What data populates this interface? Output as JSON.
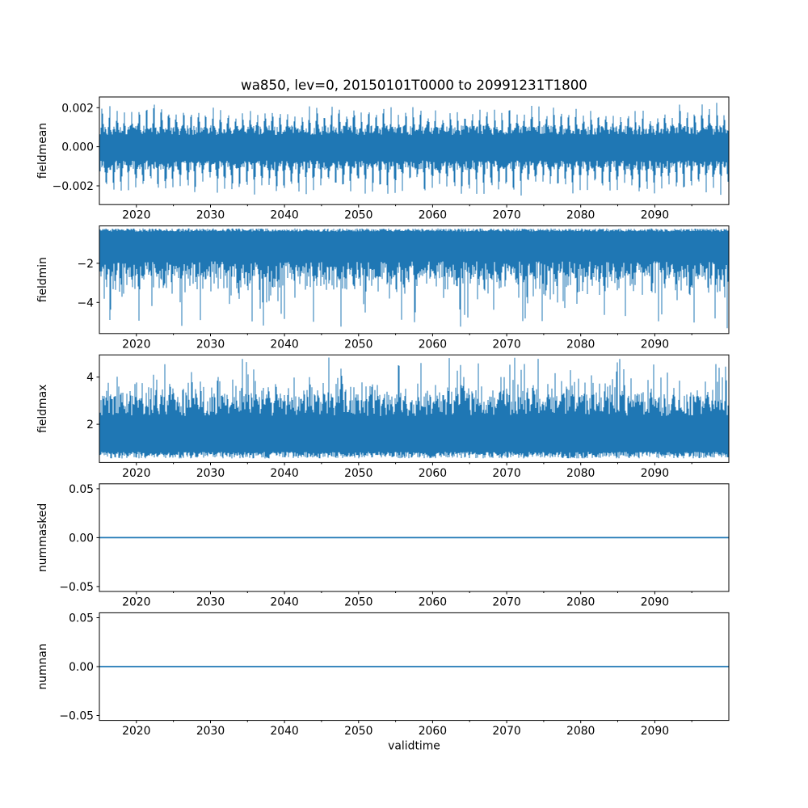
{
  "figure": {
    "title": "wa850, lev=0, 20150101T0000 to 20991231T1800",
    "xlabel": "validtime",
    "background_color": "#ffffff",
    "line_color": "#1f77b4",
    "axis_color": "#000000"
  },
  "chart_data": {
    "type": "line",
    "title": "wa850, lev=0, 20150101T0000 to 20991231T1800",
    "xlabel": "validtime",
    "legend": "none",
    "grid": false,
    "x_range_years": [
      2015,
      2100
    ],
    "x_major_ticks": [
      {
        "value": 2020,
        "label": "2020"
      },
      {
        "value": 2030,
        "label": "2030"
      },
      {
        "value": 2040,
        "label": "2040"
      },
      {
        "value": 2050,
        "label": "2050"
      },
      {
        "value": 2060,
        "label": "2060"
      },
      {
        "value": 2070,
        "label": "2070"
      },
      {
        "value": 2080,
        "label": "2080"
      },
      {
        "value": 2090,
        "label": "2090"
      }
    ],
    "x_minor_ticks": [
      2025,
      2035,
      2045,
      2055,
      2065,
      2075,
      2085,
      2095
    ],
    "subplots": [
      {
        "id": "fieldmean",
        "ylabel": "fieldmean",
        "ylim": [
          -0.00296,
          0.00255
        ],
        "yticks": [
          {
            "value": 0.002,
            "label": "0.002"
          },
          {
            "value": 0.0,
            "label": "0.000"
          },
          {
            "value": -0.002,
            "label": "−0.002"
          }
        ],
        "series": {
          "type": "noisy-band",
          "center": 0,
          "core_amplitude": 0.0012,
          "spike_max": 0.0024,
          "spike_min": -0.0027,
          "cycle": "annual"
        }
      },
      {
        "id": "fieldmin",
        "ylabel": "fieldmin",
        "ylim": [
          -5.59,
          -0.09
        ],
        "yticks": [
          {
            "value": -2,
            "label": "−2"
          },
          {
            "value": -4,
            "label": "−4"
          }
        ],
        "series": {
          "type": "noisy-band",
          "band_top": -0.25,
          "band_bottom": -2.85,
          "spike_min": -5.3,
          "cycle": "annual"
        }
      },
      {
        "id": "fieldmax",
        "ylabel": "fieldmax",
        "ylim": [
          0.38,
          4.94
        ],
        "yticks": [
          {
            "value": 4,
            "label": "4"
          },
          {
            "value": 2,
            "label": "2"
          }
        ],
        "series": {
          "type": "noisy-band",
          "band_top": 3.3,
          "band_bottom": 0.6,
          "spike_max": 4.88,
          "cycle": "annual"
        }
      },
      {
        "id": "nummasked",
        "ylabel": "nummasked",
        "ylim": [
          -0.055,
          0.055
        ],
        "yticks": [
          {
            "value": 0.05,
            "label": "0.05"
          },
          {
            "value": 0.0,
            "label": "0.00"
          },
          {
            "value": -0.05,
            "label": "−0.05"
          }
        ],
        "series": {
          "type": "constant",
          "value": 0
        }
      },
      {
        "id": "numnan",
        "ylabel": "numnan",
        "ylim": [
          -0.055,
          0.055
        ],
        "yticks": [
          {
            "value": 0.05,
            "label": "0.05"
          },
          {
            "value": 0.0,
            "label": "0.00"
          },
          {
            "value": -0.05,
            "label": "−0.05"
          }
        ],
        "series": {
          "type": "constant",
          "value": 0
        }
      }
    ]
  }
}
